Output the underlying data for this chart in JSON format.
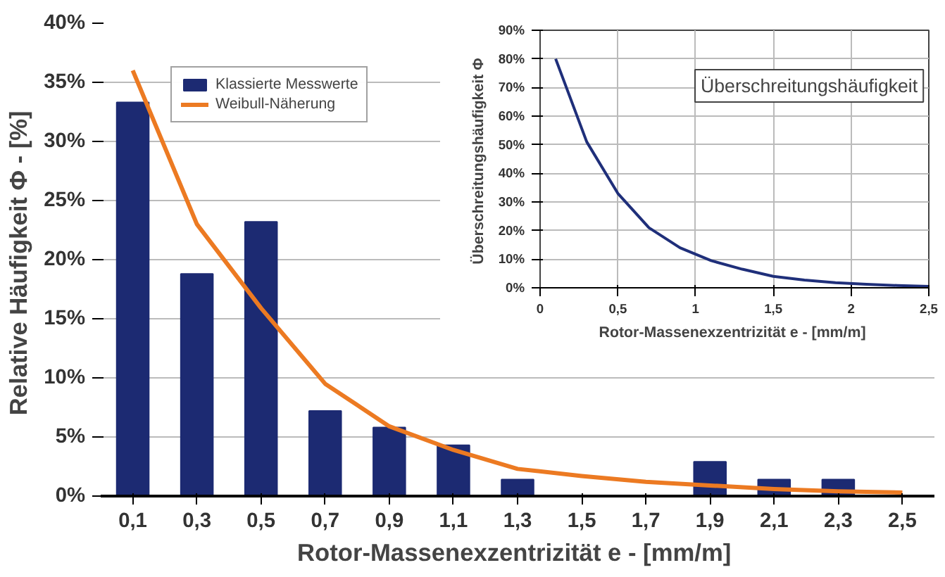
{
  "chart_data": [
    {
      "type": "bar",
      "xlabel": "Rotor-Massenexzentrizität  e - [mm/m]",
      "ylabel": "Relative Häufigkeit  Φ - [%]",
      "categories": [
        "0,1",
        "0,3",
        "0,5",
        "0,7",
        "0,9",
        "1,1",
        "1,3",
        "1,5",
        "1,7",
        "1,9",
        "2,1",
        "2,3",
        "2,5"
      ],
      "series": [
        {
          "name": "Klassierte Messwerte",
          "type": "bar",
          "color": "#1c2a72",
          "values": [
            33.3,
            18.8,
            23.2,
            7.2,
            5.8,
            4.3,
            1.4,
            0,
            0,
            2.9,
            1.4,
            1.4,
            0
          ]
        },
        {
          "name": "Weibull-Näherung",
          "type": "line",
          "color": "#ec7a22",
          "values": [
            36,
            23,
            15.9,
            9.5,
            5.9,
            3.9,
            2.3,
            1.7,
            1.2,
            0.9,
            0.6,
            0.4,
            0.3
          ]
        }
      ],
      "ylim": [
        0,
        40
      ],
      "yticks": [
        {
          "value": 0,
          "label": "0%"
        },
        {
          "value": 5,
          "label": "5%"
        },
        {
          "value": 10,
          "label": "10%"
        },
        {
          "value": 15,
          "label": "15%"
        },
        {
          "value": 20,
          "label": "20%"
        },
        {
          "value": 25,
          "label": "25%"
        },
        {
          "value": 30,
          "label": "30%"
        },
        {
          "value": 35,
          "label": "35%"
        },
        {
          "value": 40,
          "label": "40%"
        }
      ],
      "grid": "y",
      "legend": "top left"
    },
    {
      "type": "line",
      "title": "Überschreitungshäufigkeit",
      "xlabel": "Rotor-Massenexzentrizität  e - [mm/m]",
      "ylabel": "Überschreitungshäufigkeit  Φ",
      "x": [
        0.1,
        0.3,
        0.5,
        0.7,
        0.9,
        1.1,
        1.3,
        1.5,
        1.7,
        1.9,
        2.1,
        2.3,
        2.5
      ],
      "series": [
        {
          "color": "#1f2f7a",
          "values": [
            80,
            51,
            33,
            21,
            14,
            9.5,
            6.5,
            4,
            2.7,
            1.8,
            1.2,
            0.8,
            0.5
          ]
        }
      ],
      "xlim": [
        0,
        2.5
      ],
      "xticks": [
        0,
        {
          "value": 0.5,
          "label": "0,5"
        },
        1,
        {
          "value": 1.5,
          "label": "1,5"
        },
        2,
        {
          "value": 2.5,
          "label": "2,5"
        }
      ],
      "ylim": [
        0,
        90
      ],
      "yticks": [
        {
          "value": 0,
          "label": "0%"
        },
        {
          "value": 10,
          "label": "10%"
        },
        {
          "value": 20,
          "label": "20%"
        },
        {
          "value": 30,
          "label": "30%"
        },
        {
          "value": 40,
          "label": "40%"
        },
        {
          "value": 50,
          "label": "50%"
        },
        {
          "value": 60,
          "label": "60%"
        },
        {
          "value": 70,
          "label": "70%"
        },
        {
          "value": 80,
          "label": "80%"
        },
        {
          "value": 90,
          "label": "90%"
        }
      ],
      "grid": true
    }
  ]
}
